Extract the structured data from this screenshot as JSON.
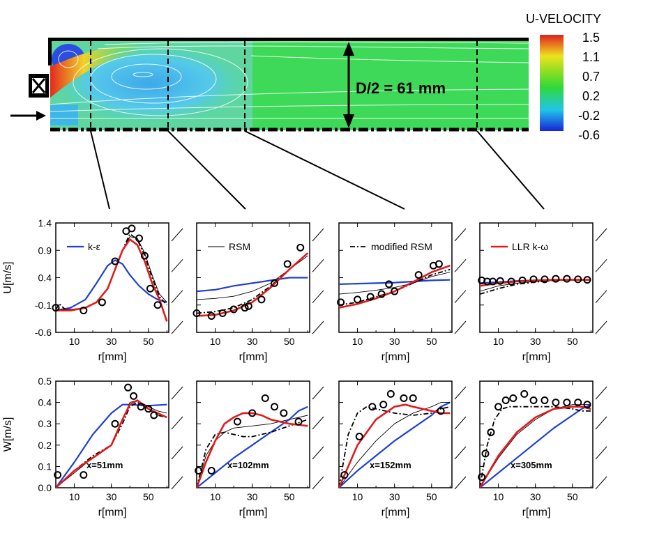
{
  "colorbar": {
    "title": "U-VELOCITY",
    "ticks": [
      "1.5",
      "1.1",
      "0.7",
      "0.2",
      "-0.2",
      "-0.6"
    ]
  },
  "contour": {
    "dimension_label": "D/2 = 61 mm",
    "station_x_mm": [
      51,
      102,
      152,
      305
    ]
  },
  "colors": {
    "k_epsilon": "#1f3fd6",
    "rsm": "#000000",
    "modified_rsm": "#000000",
    "llr_k_omega": "#e21a1a"
  },
  "chart_data": [
    {
      "type": "line",
      "row": "U",
      "ylabel": "U[m/s]",
      "xlabel": "r[mm]",
      "xlim": [
        0,
        61
      ],
      "ylim": [
        -0.6,
        1.4
      ],
      "xticks": [
        "10",
        "30",
        "50"
      ],
      "yticks": [
        "1.4",
        "0.9",
        "0.4",
        "-0.1",
        "-0.6"
      ],
      "legend": "k-ε",
      "series": [
        {
          "name": "k-ε",
          "x": [
            0,
            8,
            16,
            22,
            28,
            32,
            36,
            40,
            45,
            50,
            55,
            60
          ],
          "y": [
            -0.2,
            -0.15,
            0.0,
            0.3,
            0.62,
            0.72,
            0.65,
            0.45,
            0.25,
            0.1,
            0.0,
            -0.05
          ]
        },
        {
          "name": "RSM",
          "x": [
            0,
            8,
            16,
            22,
            28,
            32,
            36,
            40,
            44,
            48,
            52,
            56,
            60
          ],
          "y": [
            -0.18,
            -0.18,
            -0.15,
            -0.05,
            0.2,
            0.55,
            0.9,
            1.15,
            1.12,
            0.85,
            0.45,
            0.1,
            -0.05
          ]
        },
        {
          "name": "modified RSM",
          "x": [
            0,
            2,
            5,
            8,
            16,
            22,
            28,
            32,
            36,
            40,
            44,
            48,
            52,
            56,
            60
          ],
          "y": [
            -0.18,
            -0.08,
            -0.18,
            -0.2,
            -0.15,
            -0.05,
            0.2,
            0.55,
            0.9,
            1.2,
            1.1,
            0.8,
            0.4,
            0.05,
            -0.1
          ]
        },
        {
          "name": "LLR k-ω",
          "x": [
            0,
            8,
            16,
            22,
            28,
            32,
            36,
            40,
            44,
            48,
            52,
            56,
            60
          ],
          "y": [
            -0.2,
            -0.2,
            -0.15,
            -0.05,
            0.2,
            0.55,
            0.9,
            1.1,
            1.0,
            0.7,
            0.3,
            0.0,
            -0.4
          ]
        }
      ],
      "points": {
        "x": [
          0,
          15,
          25,
          32,
          38,
          41,
          45,
          48,
          51,
          55
        ],
        "y": [
          -0.15,
          -0.2,
          -0.05,
          0.7,
          1.25,
          1.3,
          1.12,
          0.8,
          0.2,
          -0.1
        ]
      }
    },
    {
      "type": "line",
      "row": "U",
      "xlabel": "r[mm]",
      "xlim": [
        0,
        61
      ],
      "ylim": [
        -0.6,
        1.4
      ],
      "xticks": [
        "10",
        "30",
        "50"
      ],
      "legend": "RSM",
      "series": [
        {
          "name": "k-ε",
          "x": [
            0,
            10,
            20,
            30,
            40,
            50,
            60
          ],
          "y": [
            0.15,
            0.18,
            0.25,
            0.3,
            0.35,
            0.4,
            0.4
          ]
        },
        {
          "name": "RSM",
          "x": [
            0,
            10,
            20,
            30,
            40,
            50,
            60
          ],
          "y": [
            0.0,
            0.02,
            0.06,
            0.15,
            0.3,
            0.55,
            0.8
          ]
        },
        {
          "name": "modified RSM",
          "x": [
            0,
            10,
            20,
            30,
            40,
            50,
            60
          ],
          "y": [
            -0.25,
            -0.22,
            -0.15,
            0.0,
            0.25,
            0.55,
            0.85
          ]
        },
        {
          "name": "LLR k-ω",
          "x": [
            0,
            10,
            20,
            30,
            40,
            50,
            60
          ],
          "y": [
            -0.3,
            -0.28,
            -0.2,
            -0.05,
            0.22,
            0.55,
            0.85
          ]
        }
      ],
      "points": {
        "x": [
          0,
          8,
          14,
          20,
          26,
          28,
          35,
          42,
          49,
          56
        ],
        "y": [
          -0.25,
          -0.3,
          -0.25,
          -0.18,
          -0.15,
          -0.12,
          0.0,
          0.3,
          0.65,
          0.95
        ]
      }
    },
    {
      "type": "line",
      "row": "U",
      "xlabel": "r[mm]",
      "xlim": [
        0,
        61
      ],
      "ylim": [
        -0.6,
        1.4
      ],
      "xticks": [
        "10",
        "30",
        "50"
      ],
      "legend": "modified RSM",
      "series": [
        {
          "name": "k-ε",
          "x": [
            0,
            10,
            20,
            30,
            40,
            50,
            60
          ],
          "y": [
            0.28,
            0.29,
            0.3,
            0.31,
            0.33,
            0.35,
            0.36
          ]
        },
        {
          "name": "RSM",
          "x": [
            0,
            10,
            20,
            30,
            40,
            50,
            60
          ],
          "y": [
            0.1,
            0.13,
            0.17,
            0.22,
            0.3,
            0.42,
            0.5
          ]
        },
        {
          "name": "modified RSM",
          "x": [
            0,
            10,
            20,
            30,
            40,
            50,
            60
          ],
          "y": [
            -0.1,
            -0.05,
            0.05,
            0.15,
            0.3,
            0.45,
            0.55
          ]
        },
        {
          "name": "LLR k-ω",
          "x": [
            0,
            10,
            20,
            30,
            40,
            50,
            60
          ],
          "y": [
            -0.15,
            -0.08,
            0.02,
            0.15,
            0.32,
            0.5,
            0.62
          ]
        }
      ],
      "points": {
        "x": [
          1,
          10,
          17,
          23,
          27,
          30,
          43,
          51,
          54
        ],
        "y": [
          -0.05,
          0.0,
          0.05,
          0.1,
          0.28,
          0.15,
          0.45,
          0.62,
          0.65
        ]
      }
    },
    {
      "type": "line",
      "row": "U",
      "xlabel": "r[mm]",
      "xlim": [
        0,
        61
      ],
      "ylim": [
        -0.6,
        1.4
      ],
      "xticks": [
        "10",
        "30",
        "50"
      ],
      "legend": "LLR k-ω",
      "series": [
        {
          "name": "k-ε",
          "x": [
            0,
            10,
            20,
            30,
            40,
            50,
            60
          ],
          "y": [
            0.3,
            0.32,
            0.34,
            0.35,
            0.36,
            0.36,
            0.36
          ]
        },
        {
          "name": "RSM",
          "x": [
            0,
            10,
            20,
            30,
            40,
            50,
            60
          ],
          "y": [
            0.15,
            0.25,
            0.3,
            0.33,
            0.35,
            0.36,
            0.36
          ]
        },
        {
          "name": "modified RSM",
          "x": [
            0,
            10,
            20,
            30,
            40,
            50,
            60
          ],
          "y": [
            0.1,
            0.2,
            0.28,
            0.32,
            0.35,
            0.36,
            0.36
          ]
        },
        {
          "name": "LLR k-ω",
          "x": [
            0,
            10,
            20,
            30,
            40,
            50,
            60
          ],
          "y": [
            0.25,
            0.3,
            0.33,
            0.35,
            0.36,
            0.36,
            0.36
          ]
        }
      ],
      "points": {
        "x": [
          1,
          4,
          7,
          11,
          17,
          23,
          29,
          35,
          41,
          47,
          53,
          58
        ],
        "y": [
          0.35,
          0.33,
          0.33,
          0.34,
          0.33,
          0.35,
          0.37,
          0.37,
          0.38,
          0.38,
          0.37,
          0.36
        ]
      }
    },
    {
      "type": "line",
      "row": "W",
      "ylabel": "W[m/s]",
      "xlabel": "r[mm]",
      "xlim": [
        0,
        61
      ],
      "ylim": [
        0.0,
        0.5
      ],
      "xticks": [
        "10",
        "30",
        "50"
      ],
      "yticks": [
        "0.5",
        "0.4",
        "0.3",
        "0.2",
        "0.1",
        "0.0"
      ],
      "annotation": "x=51mm",
      "series": [
        {
          "name": "k-ε",
          "x": [
            0,
            10,
            20,
            30,
            36,
            40,
            50,
            60
          ],
          "y": [
            0.0,
            0.12,
            0.25,
            0.35,
            0.39,
            0.39,
            0.385,
            0.39
          ]
        },
        {
          "name": "RSM",
          "x": [
            0,
            10,
            20,
            30,
            36,
            40,
            44,
            50,
            55,
            60
          ],
          "y": [
            0.0,
            0.07,
            0.14,
            0.2,
            0.32,
            0.4,
            0.41,
            0.38,
            0.36,
            0.35
          ]
        },
        {
          "name": "modified RSM",
          "x": [
            0,
            10,
            20,
            30,
            36,
            40,
            44,
            50,
            55,
            60
          ],
          "y": [
            0.0,
            0.08,
            0.15,
            0.2,
            0.3,
            0.38,
            0.4,
            0.37,
            0.34,
            0.33
          ]
        },
        {
          "name": "LLR k-ω",
          "x": [
            0,
            10,
            20,
            30,
            36,
            40,
            44,
            50,
            55,
            60
          ],
          "y": [
            0.0,
            0.08,
            0.14,
            0.2,
            0.32,
            0.39,
            0.41,
            0.37,
            0.35,
            0.33
          ]
        }
      ],
      "points": {
        "x": [
          1,
          15,
          32,
          39,
          42,
          46,
          50,
          53
        ],
        "y": [
          0.06,
          0.06,
          0.3,
          0.47,
          0.43,
          0.38,
          0.37,
          0.34
        ]
      }
    },
    {
      "type": "line",
      "row": "W",
      "xlabel": "r[mm]",
      "xlim": [
        0,
        61
      ],
      "ylim": [
        0.0,
        0.5
      ],
      "xticks": [
        "10",
        "30",
        "50"
      ],
      "annotation": "x=102mm",
      "series": [
        {
          "name": "k-ε",
          "x": [
            0,
            10,
            20,
            30,
            40,
            50,
            55,
            60
          ],
          "y": [
            0.0,
            0.07,
            0.14,
            0.2,
            0.26,
            0.32,
            0.36,
            0.38
          ]
        },
        {
          "name": "RSM",
          "x": [
            0,
            5,
            10,
            15,
            20,
            30,
            40,
            50,
            60
          ],
          "y": [
            0.0,
            0.15,
            0.22,
            0.26,
            0.28,
            0.29,
            0.3,
            0.32,
            0.34
          ]
        },
        {
          "name": "modified RSM",
          "x": [
            0,
            5,
            10,
            15,
            20,
            25,
            30,
            40,
            50,
            60
          ],
          "y": [
            0.0,
            0.18,
            0.25,
            0.26,
            0.25,
            0.24,
            0.24,
            0.26,
            0.29,
            0.32
          ]
        },
        {
          "name": "LLR k-ω",
          "x": [
            0,
            5,
            10,
            15,
            20,
            25,
            30,
            35,
            40,
            50,
            60
          ],
          "y": [
            0.0,
            0.12,
            0.22,
            0.3,
            0.33,
            0.35,
            0.35,
            0.34,
            0.32,
            0.3,
            0.29
          ]
        }
      ],
      "points": {
        "x": [
          1,
          8,
          22,
          30,
          37,
          42,
          47,
          55
        ],
        "y": [
          0.08,
          0.08,
          0.31,
          0.35,
          0.42,
          0.38,
          0.35,
          0.31
        ]
      }
    },
    {
      "type": "line",
      "row": "W",
      "xlabel": "r[mm]",
      "xlim": [
        0,
        61
      ],
      "ylim": [
        0.0,
        0.5
      ],
      "xticks": [
        "10",
        "30",
        "50"
      ],
      "annotation": "x=152mm",
      "series": [
        {
          "name": "k-ε",
          "x": [
            0,
            10,
            20,
            30,
            40,
            50,
            55,
            60
          ],
          "y": [
            0.0,
            0.08,
            0.15,
            0.22,
            0.28,
            0.34,
            0.38,
            0.4
          ]
        },
        {
          "name": "RSM",
          "x": [
            0,
            10,
            20,
            30,
            40,
            50,
            55,
            60
          ],
          "y": [
            0.0,
            0.12,
            0.22,
            0.3,
            0.35,
            0.38,
            0.4,
            0.4
          ]
        },
        {
          "name": "modified RSM",
          "x": [
            0,
            5,
            10,
            15,
            20,
            30,
            40,
            50,
            55,
            60
          ],
          "y": [
            0.0,
            0.25,
            0.35,
            0.38,
            0.37,
            0.35,
            0.34,
            0.35,
            0.37,
            0.38
          ]
        },
        {
          "name": "LLR k-ω",
          "x": [
            0,
            10,
            20,
            30,
            36,
            40,
            50,
            55,
            60
          ],
          "y": [
            0.0,
            0.2,
            0.32,
            0.38,
            0.39,
            0.38,
            0.36,
            0.35,
            0.35
          ]
        }
      ],
      "points": {
        "x": [
          3,
          11,
          18,
          24,
          28,
          35,
          40,
          55
        ],
        "y": [
          0.06,
          0.24,
          0.38,
          0.39,
          0.44,
          0.42,
          0.42,
          0.36
        ]
      }
    },
    {
      "type": "line",
      "row": "W",
      "xlabel": "r[mm]",
      "xlim": [
        0,
        61
      ],
      "ylim": [
        0.0,
        0.5
      ],
      "xticks": [
        "10",
        "30",
        "50"
      ],
      "annotation": "x=305mm",
      "series": [
        {
          "name": "k-ε",
          "x": [
            0,
            10,
            20,
            30,
            40,
            50,
            55,
            60
          ],
          "y": [
            0.0,
            0.07,
            0.14,
            0.21,
            0.28,
            0.34,
            0.37,
            0.39
          ]
        },
        {
          "name": "RSM",
          "x": [
            0,
            10,
            20,
            30,
            40,
            50,
            55,
            60
          ],
          "y": [
            0.0,
            0.14,
            0.25,
            0.32,
            0.37,
            0.39,
            0.39,
            0.39
          ]
        },
        {
          "name": "modified RSM",
          "x": [
            0,
            4,
            8,
            12,
            16,
            20,
            25,
            30,
            40,
            50,
            55,
            60
          ],
          "y": [
            0.0,
            0.2,
            0.32,
            0.37,
            0.38,
            0.38,
            0.38,
            0.38,
            0.38,
            0.37,
            0.36,
            0.36
          ]
        },
        {
          "name": "LLR k-ω",
          "x": [
            0,
            10,
            20,
            30,
            40,
            50,
            55,
            60
          ],
          "y": [
            0.0,
            0.15,
            0.26,
            0.33,
            0.37,
            0.38,
            0.38,
            0.37
          ]
        }
      ],
      "points": {
        "x": [
          1,
          3,
          6,
          10,
          14,
          18,
          24,
          29,
          35,
          41,
          47,
          53,
          58
        ],
        "y": [
          0.05,
          0.16,
          0.26,
          0.38,
          0.41,
          0.42,
          0.44,
          0.41,
          0.41,
          0.4,
          0.4,
          0.4,
          0.39
        ]
      }
    }
  ]
}
